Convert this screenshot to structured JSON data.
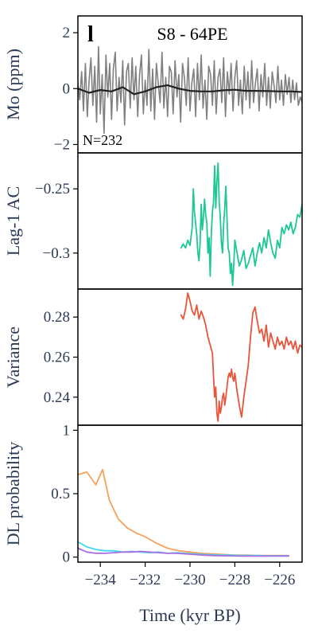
{
  "chart_data": {
    "type": "line",
    "panel_letter": "l",
    "title": "S8 - 64PE",
    "xlabel": "Time (kyr BP)",
    "xlim": [
      -235,
      -225
    ],
    "xticks": [
      -234,
      -232,
      -230,
      -228,
      -226
    ],
    "xtick_labels": [
      "−234",
      "−232",
      "−230",
      "−228",
      "−226"
    ],
    "panels": [
      {
        "id": "mo",
        "ylabel": "Mo (ppm)",
        "ylim": [
          -2.3,
          2.6
        ],
        "yticks": [
          -2,
          0,
          2
        ],
        "ytick_labels": [
          "−2",
          "0",
          "2"
        ],
        "annotation": "N=232",
        "series": [
          {
            "role": "data",
            "color": "#808080",
            "x": [
              -235.0,
              -234.917,
              -234.833,
              -234.75,
              -234.667,
              -234.583,
              -234.5,
              -234.417,
              -234.333,
              -234.25,
              -234.167,
              -234.083,
              -234.0,
              -233.917,
              -233.833,
              -233.75,
              -233.667,
              -233.583,
              -233.5,
              -233.417,
              -233.333,
              -233.25,
              -233.167,
              -233.083,
              -233.0,
              -232.917,
              -232.833,
              -232.75,
              -232.667,
              -232.583,
              -232.5,
              -232.417,
              -232.333,
              -232.25,
              -232.167,
              -232.083,
              -232.0,
              -231.917,
              -231.833,
              -231.75,
              -231.667,
              -231.583,
              -231.5,
              -231.417,
              -231.333,
              -231.25,
              -231.167,
              -231.083,
              -231.0,
              -230.917,
              -230.833,
              -230.75,
              -230.667,
              -230.583,
              -230.5,
              -230.417,
              -230.333,
              -230.25,
              -230.167,
              -230.083,
              -230.0,
              -229.917,
              -229.833,
              -229.75,
              -229.667,
              -229.583,
              -229.5,
              -229.417,
              -229.333,
              -229.25,
              -229.167,
              -229.083,
              -229.0,
              -228.917,
              -228.833,
              -228.75,
              -228.667,
              -228.583,
              -228.5,
              -228.417,
              -228.333,
              -228.25,
              -228.167,
              -228.083,
              -228.0,
              -227.917,
              -227.833,
              -227.75,
              -227.667,
              -227.583,
              -227.5,
              -227.417,
              -227.333,
              -227.25,
              -227.167,
              -227.083,
              -227.0,
              -226.917,
              -226.833,
              -226.75,
              -226.667,
              -226.583,
              -226.5,
              -226.417,
              -226.333,
              -226.25,
              -226.167,
              -226.083,
              -226.0,
              -225.917,
              -225.833,
              -225.75,
              -225.667,
              -225.583,
              -225.5,
              -225.417,
              -225.333,
              -225.25,
              -225.167,
              -225.083,
              -225.0
            ],
            "y": [
              0.2,
              -0.4,
              0.6,
              -0.8,
              0.9,
              -1.0,
              0.3,
              1.1,
              -0.6,
              0.8,
              -1.2,
              1.5,
              -0.9,
              0.5,
              -1.6,
              1.2,
              -0.3,
              0.9,
              -1.1,
              0.7,
              1.3,
              -0.8,
              0.4,
              -0.5,
              1.0,
              -1.3,
              0.6,
              0.9,
              -0.7,
              1.1,
              -0.4,
              0.8,
              -1.0,
              0.5,
              1.2,
              -0.9,
              0.3,
              -0.6,
              1.4,
              -0.8,
              0.7,
              -1.1,
              0.9,
              0.2,
              -0.5,
              1.3,
              -0.7,
              0.4,
              -1.0,
              0.8,
              0.6,
              -0.9,
              1.0,
              -0.3,
              0.5,
              -1.2,
              0.9,
              0.4,
              -0.6,
              1.1,
              -0.8,
              0.2,
              0.7,
              -1.0,
              0.9,
              -0.4,
              1.2,
              -0.7,
              0.3,
              -1.1,
              0.8,
              0.5,
              -0.6,
              1.0,
              -0.9,
              0.4,
              0.7,
              -0.5,
              1.1,
              -1.0,
              0.6,
              -0.2,
              0.9,
              -0.8,
              0.4,
              1.0,
              -0.6,
              0.3,
              -0.9,
              0.8,
              -0.4,
              0.6,
              -0.7,
              1.0,
              -0.5,
              0.2,
              0.7,
              -0.8,
              0.5,
              -0.3,
              0.9,
              -0.6,
              0.4,
              -0.7,
              0.6,
              0.1,
              -0.5,
              0.8,
              -0.4,
              0.3,
              -0.6,
              0.5,
              -0.2,
              0.4,
              -0.5,
              0.3,
              -0.4,
              0.2,
              -0.6,
              -0.3,
              -0.5
            ]
          },
          {
            "role": "trend",
            "color": "#222222",
            "x": [
              -235.0,
              -234.5,
              -234.0,
              -233.5,
              -233.0,
              -232.5,
              -232.0,
              -231.5,
              -231.0,
              -230.5,
              -230.0,
              -229.5,
              -229.0,
              -228.5,
              -228.0,
              -227.5,
              -227.0,
              -226.5,
              -226.0,
              -225.5,
              -225.0
            ],
            "y": [
              0.0,
              -0.15,
              -0.05,
              -0.1,
              0.05,
              -0.2,
              -0.1,
              0.05,
              0.12,
              0.0,
              -0.08,
              -0.1,
              -0.1,
              -0.06,
              -0.04,
              -0.08,
              -0.08,
              -0.09,
              -0.1,
              -0.1,
              -0.12
            ]
          }
        ]
      },
      {
        "id": "ac",
        "ylabel": "Lag-1 AC",
        "ylim": [
          -0.328,
          -0.222
        ],
        "yticks": [
          -0.25,
          -0.3
        ],
        "ytick_labels": [
          "−0.25",
          "−0.3"
        ],
        "series": [
          {
            "color": "#1ec896",
            "x": [
              -230.4,
              -230.3,
              -230.2,
              -230.1,
              -230.0,
              -229.95,
              -229.9,
              -229.85,
              -229.8,
              -229.75,
              -229.7,
              -229.65,
              -229.6,
              -229.55,
              -229.5,
              -229.45,
              -229.4,
              -229.35,
              -229.3,
              -229.25,
              -229.2,
              -229.15,
              -229.1,
              -229.05,
              -229.0,
              -228.95,
              -228.9,
              -228.85,
              -228.8,
              -228.75,
              -228.7,
              -228.65,
              -228.6,
              -228.55,
              -228.5,
              -228.45,
              -228.4,
              -228.35,
              -228.3,
              -228.25,
              -228.2,
              -228.15,
              -228.1,
              -228.05,
              -228.0,
              -227.9,
              -227.8,
              -227.7,
              -227.6,
              -227.5,
              -227.4,
              -227.3,
              -227.2,
              -227.1,
              -227.0,
              -226.9,
              -226.8,
              -226.7,
              -226.6,
              -226.5,
              -226.4,
              -226.3,
              -226.2,
              -226.1,
              -226.0,
              -225.9,
              -225.8,
              -225.7,
              -225.6,
              -225.5,
              -225.4,
              -225.3,
              -225.2,
              -225.1,
              -225.0
            ],
            "y": [
              -0.296,
              -0.293,
              -0.296,
              -0.29,
              -0.294,
              -0.287,
              -0.28,
              -0.25,
              -0.268,
              -0.277,
              -0.286,
              -0.3,
              -0.306,
              -0.292,
              -0.262,
              -0.282,
              -0.272,
              -0.258,
              -0.27,
              -0.276,
              -0.3,
              -0.288,
              -0.318,
              -0.285,
              -0.268,
              -0.26,
              -0.232,
              -0.265,
              -0.245,
              -0.23,
              -0.26,
              -0.272,
              -0.292,
              -0.3,
              -0.278,
              -0.265,
              -0.248,
              -0.272,
              -0.296,
              -0.3,
              -0.316,
              -0.308,
              -0.325,
              -0.31,
              -0.29,
              -0.3,
              -0.31,
              -0.305,
              -0.298,
              -0.312,
              -0.308,
              -0.302,
              -0.296,
              -0.31,
              -0.3,
              -0.292,
              -0.3,
              -0.288,
              -0.296,
              -0.282,
              -0.292,
              -0.3,
              -0.304,
              -0.29,
              -0.296,
              -0.28,
              -0.285,
              -0.278,
              -0.282,
              -0.276,
              -0.285,
              -0.28,
              -0.27,
              -0.272,
              -0.262
            ]
          }
        ]
      },
      {
        "id": "var",
        "ylabel": "Variance",
        "ylim": [
          0.226,
          0.294
        ],
        "yticks": [
          0.28,
          0.26,
          0.24
        ],
        "ytick_labels": [
          "0.28",
          "0.26",
          "0.24"
        ],
        "series": [
          {
            "color": "#e8553a",
            "x": [
              -230.4,
              -230.3,
              -230.2,
              -230.1,
              -230.0,
              -229.9,
              -229.8,
              -229.7,
              -229.6,
              -229.5,
              -229.4,
              -229.3,
              -229.2,
              -229.1,
              -229.0,
              -228.95,
              -228.9,
              -228.85,
              -228.8,
              -228.75,
              -228.7,
              -228.65,
              -228.6,
              -228.55,
              -228.5,
              -228.45,
              -228.4,
              -228.35,
              -228.3,
              -228.25,
              -228.2,
              -228.15,
              -228.1,
              -228.05,
              -228.0,
              -227.9,
              -227.8,
              -227.7,
              -227.6,
              -227.5,
              -227.4,
              -227.3,
              -227.2,
              -227.1,
              -227.0,
              -226.9,
              -226.8,
              -226.7,
              -226.6,
              -226.5,
              -226.4,
              -226.3,
              -226.2,
              -226.1,
              -226.0,
              -225.9,
              -225.8,
              -225.7,
              -225.6,
              -225.5,
              -225.4,
              -225.3,
              -225.2,
              -225.1,
              -225.0
            ],
            "y": [
              0.281,
              0.279,
              0.284,
              0.292,
              0.288,
              0.283,
              0.281,
              0.286,
              0.279,
              0.283,
              0.28,
              0.276,
              0.27,
              0.266,
              0.262,
              0.25,
              0.24,
              0.245,
              0.232,
              0.228,
              0.238,
              0.232,
              0.235,
              0.24,
              0.242,
              0.236,
              0.24,
              0.245,
              0.25,
              0.252,
              0.25,
              0.254,
              0.25,
              0.248,
              0.252,
              0.243,
              0.236,
              0.23,
              0.24,
              0.248,
              0.256,
              0.27,
              0.282,
              0.285,
              0.278,
              0.272,
              0.274,
              0.268,
              0.276,
              0.265,
              0.272,
              0.268,
              0.264,
              0.27,
              0.266,
              0.268,
              0.264,
              0.27,
              0.266,
              0.268,
              0.264,
              0.268,
              0.262,
              0.266,
              0.265
            ]
          }
        ]
      },
      {
        "id": "dl",
        "ylabel": "DL probability",
        "ylim": [
          -0.04,
          1.04
        ],
        "yticks": [
          1,
          0.5,
          0
        ],
        "ytick_labels": [
          "1",
          "0.5",
          "0"
        ],
        "series": [
          {
            "color": "#f5a15a",
            "x": [
              -235.0,
              -234.6,
              -234.2,
              -233.9,
              -233.6,
              -233.2,
              -232.8,
              -232.4,
              -232.0,
              -231.5,
              -231.0,
              -230.5,
              -230.0,
              -229.5,
              -229.0,
              -228.5,
              -228.0,
              -227.5,
              -227.0,
              -226.5,
              -226.0,
              -225.6
            ],
            "y": [
              0.65,
              0.67,
              0.57,
              0.69,
              0.45,
              0.3,
              0.23,
              0.19,
              0.16,
              0.11,
              0.07,
              0.05,
              0.04,
              0.03,
              0.025,
              0.02,
              0.015,
              0.015,
              0.012,
              0.012,
              0.012,
              0.012
            ]
          },
          {
            "color": "#40d8f0",
            "x": [
              -235.0,
              -234.6,
              -234.2,
              -233.8,
              -233.4,
              -233.0,
              -232.6,
              -232.2,
              -231.8,
              -231.4,
              -231.0,
              -230.6,
              -230.2,
              -229.8,
              -229.4,
              -229.0,
              -228.6,
              -228.2,
              -227.8,
              -227.4,
              -227.0,
              -226.6,
              -226.2,
              -225.6
            ],
            "y": [
              0.12,
              0.08,
              0.06,
              0.05,
              0.05,
              0.04,
              0.045,
              0.04,
              0.035,
              0.04,
              0.03,
              0.035,
              0.03,
              0.025,
              0.02,
              0.018,
              0.015,
              0.015,
              0.012,
              0.012,
              0.012,
              0.01,
              0.01,
              0.01
            ]
          },
          {
            "color": "#a86ee0",
            "x": [
              -235.0,
              -234.6,
              -234.2,
              -233.8,
              -233.4,
              -233.0,
              -232.6,
              -232.2,
              -231.8,
              -231.4,
              -231.0,
              -230.6,
              -230.2,
              -229.8,
              -229.4,
              -229.0,
              -228.6,
              -228.2,
              -227.8,
              -227.4,
              -227.0,
              -226.6,
              -226.2,
              -225.6
            ],
            "y": [
              0.07,
              0.04,
              0.03,
              0.03,
              0.035,
              0.04,
              0.04,
              0.045,
              0.04,
              0.035,
              0.03,
              0.03,
              0.025,
              0.02,
              0.015,
              0.012,
              0.01,
              0.01,
              0.008,
              0.008,
              0.008,
              0.008,
              0.008,
              0.008
            ]
          }
        ]
      }
    ]
  }
}
